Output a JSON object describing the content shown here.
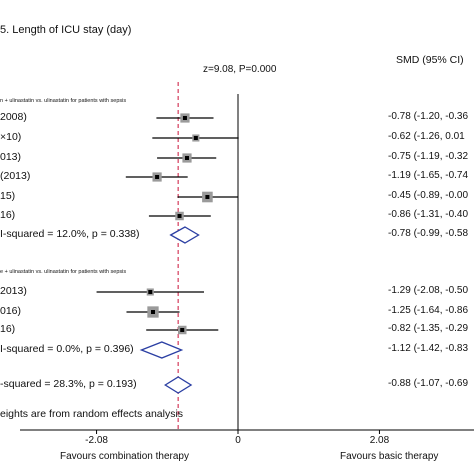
{
  "panel_title": "5. Length of ICU stay (day)",
  "overall_test": "z=9.08, P=0.000",
  "estimate_header": "SMD (95% CI)",
  "footnote": "eights are from random effects analysis",
  "favours_left": "Favours combination therapy",
  "favours_right": "Favours basic therapy",
  "colors": {
    "reference_line": "#d43a5a",
    "summary_diamond": "#2b3fa3",
    "ci_line": "#000000",
    "weight_box": "#9a9a9a"
  },
  "chart_data": {
    "type": "forest",
    "axis_ticks": [
      {
        "value": -2.08,
        "label": "-2.08"
      },
      {
        "value": 0,
        "label": "0"
      },
      {
        "value": 2.08,
        "label": "2.08"
      }
    ],
    "xlim": [
      -2.8,
      2.8
    ],
    "null_line": 0,
    "overall_reference": -0.88,
    "groups": [
      {
        "subtitle": "n + ulinastatin vs. ulinastatin for patients with sepsis",
        "studies": [
          {
            "label": "2008)",
            "smd": -0.78,
            "low": -1.2,
            "high": -0.36,
            "ci_text": "-0.78 (-1.20, -0.36",
            "weight": 0.6
          },
          {
            "label": "×10)",
            "smd": -0.62,
            "low": -1.26,
            "high": 0.01,
            "ci_text": "-0.62 (-1.26, 0.01",
            "weight": 0.3
          },
          {
            "label": "013)",
            "smd": -0.75,
            "low": -1.19,
            "high": -0.32,
            "ci_text": "-0.75 (-1.19, -0.32",
            "weight": 0.6
          },
          {
            "label": "(2013)",
            "smd": -1.19,
            "low": -1.65,
            "high": -0.74,
            "ci_text": "-1.19 (-1.65, -0.74",
            "weight": 0.6
          },
          {
            "label": "15)",
            "smd": -0.45,
            "low": -0.89,
            "high": -0.0,
            "ci_text": "-0.45 (-0.89, -0.00",
            "weight": 0.8
          },
          {
            "label": "16)",
            "smd": -0.86,
            "low": -1.31,
            "high": -0.4,
            "ci_text": "-0.86 (-1.31, -0.40",
            "weight": 0.5
          }
        ],
        "subtotal": {
          "label": "I-squared = 12.0%, p = 0.338)",
          "smd": -0.78,
          "low": -0.99,
          "high": -0.58,
          "ci_text": "-0.78 (-0.99, -0.58"
        }
      },
      {
        "subtitle": "e + ulinastatin vs. ulinastatin for patients with sepsis",
        "studies": [
          {
            "label": "2013)",
            "smd": -1.29,
            "low": -2.08,
            "high": -0.5,
            "ci_text": "-1.29 (-2.08, -0.50",
            "weight": 0.3
          },
          {
            "label": "016)",
            "smd": -1.25,
            "low": -1.64,
            "high": -0.86,
            "ci_text": "-1.25 (-1.64, -0.86",
            "weight": 0.9
          },
          {
            "label": "16)",
            "smd": -0.82,
            "low": -1.35,
            "high": -0.29,
            "ci_text": "-0.82 (-1.35, -0.29",
            "weight": 0.5
          }
        ],
        "subtotal": {
          "label": "I-squared = 0.0%, p = 0.396)",
          "smd": -1.12,
          "low": -1.42,
          "high": -0.83,
          "ci_text": "-1.12 (-1.42, -0.83"
        }
      }
    ],
    "overall": {
      "label": "-squared = 28.3%, p = 0.193)",
      "smd": -0.88,
      "low": -1.07,
      "high": -0.69,
      "ci_text": "-0.88 (-1.07, -0.69"
    }
  }
}
